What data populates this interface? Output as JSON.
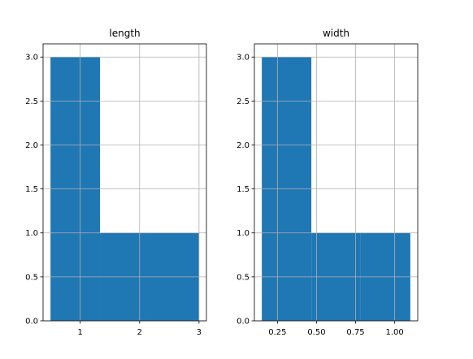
{
  "chart_data": [
    {
      "type": "bar",
      "title": "length",
      "xlabel": "",
      "ylabel": "",
      "bins": [
        [
          0.5,
          1.333
        ],
        [
          1.333,
          2.167
        ],
        [
          2.167,
          3.0
        ]
      ],
      "values": [
        3,
        1,
        1
      ],
      "xlim": [
        0.375,
        3.125
      ],
      "ylim": [
        0,
        3.15
      ],
      "xticks": [
        1,
        2,
        3
      ],
      "xtick_labels": [
        "1",
        "2",
        "3"
      ],
      "yticks": [
        0,
        0.5,
        1,
        1.5,
        2,
        2.5,
        3
      ],
      "ytick_labels": [
        "0.0",
        "0.5",
        "1.0",
        "1.5",
        "2.0",
        "2.5",
        "3.0"
      ],
      "grid": true,
      "color": "#1f77b4"
    },
    {
      "type": "bar",
      "title": "width",
      "xlabel": "",
      "ylabel": "",
      "bins": [
        [
          0.15,
          0.467
        ],
        [
          0.467,
          0.783
        ],
        [
          0.783,
          1.1
        ]
      ],
      "values": [
        3,
        1,
        1
      ],
      "xlim": [
        0.1025,
        1.1475
      ],
      "ylim": [
        0,
        3.15
      ],
      "xticks": [
        0.25,
        0.5,
        0.75,
        1.0
      ],
      "xtick_labels": [
        "0.25",
        "0.50",
        "0.75",
        "1.00"
      ],
      "yticks": [
        0,
        0.5,
        1,
        1.5,
        2,
        2.5,
        3
      ],
      "ytick_labels": [
        "0.0",
        "0.5",
        "1.0",
        "1.5",
        "2.0",
        "2.5",
        "3.0"
      ],
      "grid": true,
      "color": "#1f77b4"
    }
  ],
  "colors": {
    "bar_fill": "#1f77b4",
    "grid": "#b0b0b0",
    "frame": "#000000",
    "background": "#ffffff"
  }
}
